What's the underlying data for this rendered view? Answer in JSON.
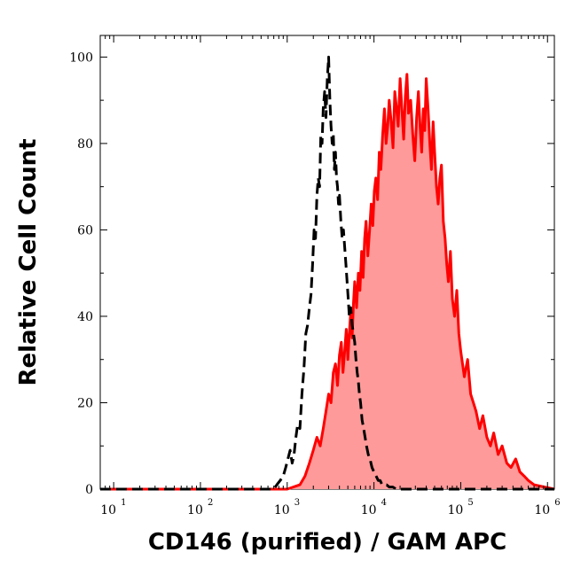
{
  "chart_data": {
    "type": "area",
    "title": "",
    "xlabel": "CD146 (purified) / GAM APC",
    "ylabel": "Relative Cell Count",
    "x_scale": "log",
    "xlim": [
      7,
      1200000
    ],
    "ylim": [
      0,
      105
    ],
    "x_ticks": [
      {
        "base": "10",
        "exp": "1",
        "value": 10
      },
      {
        "base": "10",
        "exp": "2",
        "value": 100
      },
      {
        "base": "10",
        "exp": "3",
        "value": 1000
      },
      {
        "base": "10",
        "exp": "4",
        "value": 10000
      },
      {
        "base": "10",
        "exp": "5",
        "value": 100000
      },
      {
        "base": "10",
        "exp": "6",
        "value": 1000000
      }
    ],
    "y_ticks": [
      "0",
      "20",
      "40",
      "60",
      "80",
      "100"
    ],
    "grid": false,
    "legend": "none",
    "series": [
      {
        "style": "dashed",
        "line_color": "#000000",
        "fill": "none",
        "x": [
          7,
          50,
          700,
          760,
          830,
          900,
          960,
          1020,
          1080,
          1140,
          1200,
          1260,
          1320,
          1400,
          1480,
          1560,
          1640,
          1720,
          1800,
          1880,
          1960,
          2040,
          2120,
          2200,
          2280,
          2360,
          2440,
          2520,
          2600,
          2700,
          2800,
          2900,
          3000,
          3100,
          3200,
          3300,
          3400,
          3500,
          3600,
          3700,
          3800,
          3900,
          4000,
          4150,
          4300,
          4450,
          4600,
          4750,
          4900,
          5050,
          5200,
          5400,
          5600,
          5800,
          6000,
          6200,
          6400,
          6600,
          6800,
          7000,
          7300,
          7600,
          7900,
          8200,
          8600,
          9000,
          9500,
          10000,
          10600,
          11200,
          11800,
          12400,
          13000,
          14000,
          15000,
          16500,
          18000,
          20000,
          25000,
          35000,
          60000,
          100000,
          1200000
        ],
        "y": [
          0,
          0,
          0,
          1,
          2,
          3,
          5,
          7,
          9,
          6,
          8,
          12,
          15,
          14,
          22,
          28,
          36,
          38,
          42,
          45,
          52,
          60,
          58,
          68,
          72,
          70,
          82,
          80,
          88,
          92,
          86,
          95,
          100,
          90,
          84,
          80,
          82,
          74,
          78,
          72,
          70,
          66,
          68,
          62,
          58,
          60,
          56,
          52,
          48,
          44,
          40,
          42,
          38,
          36,
          34,
          30,
          27,
          25,
          22,
          20,
          16,
          14,
          12,
          10,
          8,
          7,
          5,
          4,
          3,
          2,
          2,
          1,
          1,
          1,
          0.5,
          0.5,
          0,
          0,
          0,
          0,
          0,
          0,
          0
        ]
      },
      {
        "style": "solid",
        "line_color": "#ff0000",
        "fill": "#ff9a9a",
        "x": [
          7,
          100,
          1000,
          1400,
          1600,
          1800,
          2000,
          2200,
          2400,
          2600,
          2800,
          3000,
          3200,
          3400,
          3600,
          3800,
          4000,
          4200,
          4400,
          4600,
          4800,
          5000,
          5200,
          5400,
          5600,
          5800,
          6000,
          6300,
          6600,
          6900,
          7200,
          7500,
          7800,
          8100,
          8500,
          8900,
          9300,
          9700,
          10100,
          10500,
          11000,
          11500,
          12000,
          12600,
          13200,
          13800,
          14400,
          15000,
          15800,
          16600,
          17400,
          18200,
          19000,
          20000,
          21000,
          22000,
          23000,
          24000,
          25000,
          26500,
          28000,
          29500,
          31000,
          32500,
          34000,
          35500,
          37000,
          38500,
          40000,
          42000,
          44000,
          46000,
          48000,
          50000,
          52500,
          55000,
          57500,
          60000,
          63000,
          66000,
          69000,
          72000,
          76000,
          80000,
          85000,
          90000,
          95000,
          100000,
          110000,
          120000,
          130000,
          140000,
          150000,
          165000,
          180000,
          200000,
          220000,
          240000,
          270000,
          300000,
          340000,
          380000,
          430000,
          480000,
          540000,
          600000,
          700000,
          1200000
        ],
        "y": [
          0,
          0,
          0,
          1,
          3,
          6,
          9,
          12,
          10,
          14,
          18,
          22,
          20,
          27,
          29,
          24,
          31,
          34,
          27,
          32,
          37,
          30,
          36,
          41,
          35,
          43,
          48,
          42,
          50,
          46,
          55,
          49,
          58,
          62,
          54,
          60,
          66,
          61,
          69,
          72,
          67,
          78,
          74,
          82,
          88,
          80,
          84,
          90,
          85,
          79,
          92,
          88,
          84,
          95,
          88,
          81,
          91,
          96,
          87,
          90,
          82,
          76,
          86,
          92,
          84,
          78,
          88,
          83,
          95,
          88,
          80,
          74,
          85,
          78,
          70,
          66,
          72,
          75,
          62,
          58,
          52,
          48,
          55,
          44,
          40,
          46,
          36,
          32,
          26,
          30,
          22,
          20,
          18,
          14,
          17,
          12,
          10,
          13,
          8,
          10,
          6,
          5,
          7,
          4,
          3,
          2,
          1,
          0
        ]
      }
    ]
  }
}
